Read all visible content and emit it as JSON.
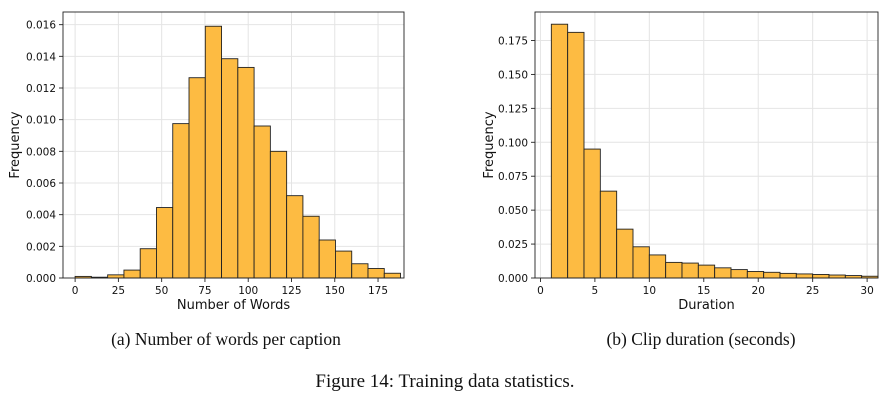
{
  "chart_data": [
    {
      "type": "bar",
      "subtype": "histogram",
      "caption": "(a) Number of words per caption",
      "xlabel": "Number of Words",
      "ylabel": "Frequency",
      "xlim": [
        -7,
        190
      ],
      "ylim": [
        0,
        0.0168
      ],
      "xticks": [
        0,
        25,
        50,
        75,
        100,
        125,
        150,
        175
      ],
      "xtick_labels": [
        "0",
        "25",
        "50",
        "75",
        "100",
        "125",
        "150",
        "175"
      ],
      "yticks": [
        0,
        0.002,
        0.004,
        0.006,
        0.008,
        0.01,
        0.012,
        0.014,
        0.016
      ],
      "ytick_labels": [
        "0.000",
        "0.002",
        "0.004",
        "0.006",
        "0.008",
        "0.010",
        "0.012",
        "0.014",
        "0.016"
      ],
      "grid": true,
      "bar_color": "#fdbb42",
      "edge_color": "#222222",
      "bin_edges": [
        0,
        9.4,
        18.8,
        28.2,
        37.6,
        47,
        56.4,
        65.8,
        75.2,
        84.6,
        94,
        103.4,
        112.8,
        122.2,
        131.6,
        141,
        150.4,
        159.8,
        169.2,
        178.6,
        188
      ],
      "values": [
        0.0001,
        5e-05,
        0.0002,
        0.0005,
        0.00185,
        0.00445,
        0.00975,
        0.01265,
        0.0159,
        0.01385,
        0.0133,
        0.0096,
        0.008,
        0.0052,
        0.0039,
        0.0024,
        0.0017,
        0.0009,
        0.0006,
        0.0003
      ]
    },
    {
      "type": "bar",
      "subtype": "histogram",
      "caption": "(b) Clip duration (seconds)",
      "xlabel": "Duration",
      "ylabel": "Frequency",
      "xlim": [
        -0.5,
        31
      ],
      "ylim": [
        0,
        0.196
      ],
      "xticks": [
        0,
        5,
        10,
        15,
        20,
        25,
        30
      ],
      "xtick_labels": [
        "0",
        "5",
        "10",
        "15",
        "20",
        "25",
        "30"
      ],
      "yticks": [
        0,
        0.025,
        0.05,
        0.075,
        0.1,
        0.125,
        0.15,
        0.175
      ],
      "ytick_labels": [
        "0.000",
        "0.025",
        "0.050",
        "0.075",
        "0.100",
        "0.125",
        "0.150",
        "0.175"
      ],
      "grid": true,
      "bar_color": "#fdbb42",
      "edge_color": "#222222",
      "bin_edges": [
        1,
        2.5,
        4,
        5.5,
        7,
        8.5,
        10,
        11.5,
        13,
        14.5,
        16,
        17.5,
        19,
        20.5,
        22,
        23.5,
        25,
        26.5,
        28,
        29.5,
        31
      ],
      "values": [
        0.187,
        0.181,
        0.095,
        0.064,
        0.036,
        0.023,
        0.017,
        0.0115,
        0.011,
        0.0095,
        0.0075,
        0.0062,
        0.0048,
        0.0042,
        0.0034,
        0.003,
        0.0026,
        0.0022,
        0.0018,
        0.0013
      ]
    }
  ],
  "figure": {
    "caption": "Figure 14: Training data statistics."
  }
}
